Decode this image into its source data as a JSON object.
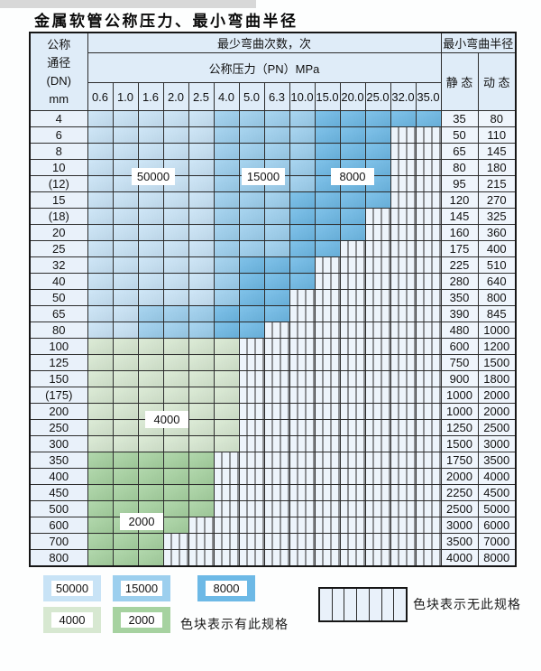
{
  "page": {
    "title": "金属软管公称压力、最小弯曲半径"
  },
  "table": {
    "header": {
      "dn_lines": [
        "公称",
        "通径",
        "(DN)",
        "mm"
      ],
      "bend_cycles_label": "最少弯曲次数，次",
      "pressure_label": "公称压力（PN）MPa",
      "pressure_values": [
        "0.6",
        "1.0",
        "1.6",
        "2.0",
        "2.5",
        "4.0",
        "5.0",
        "6.3",
        "10.0",
        "15.0",
        "20.0",
        "25.0",
        "32.0",
        "35.0"
      ],
      "min_radius_label": "最小弯曲半径",
      "static_label": "静 态",
      "dynamic_label": "动 态"
    },
    "zone_colors": {
      "b1": "#c8e3f6",
      "b2": "#9ccfee",
      "b3": "#6db9e6",
      "g1": "#d7e8d1",
      "g2": "#a6d2a0",
      "nospec_bg": "#edf4fb",
      "nospec_line": "#2d2d2d"
    },
    "zone_meaning": {
      "b1": "50000",
      "b2": "15000",
      "b3": "8000",
      "g1": "4000",
      "g2": "2000",
      "nospec": "无此规格"
    },
    "rows": [
      {
        "dn": "4",
        "zones": {
          "b1": 5,
          "b2": 4,
          "b3": 5
        },
        "static": "35",
        "dynamic": "80"
      },
      {
        "dn": "6",
        "zones": {
          "b1": 5,
          "b2": 4,
          "b3": 3
        },
        "static": "50",
        "dynamic": "110"
      },
      {
        "dn": "8",
        "zones": {
          "b1": 5,
          "b2": 4,
          "b3": 3
        },
        "static": "65",
        "dynamic": "145"
      },
      {
        "dn": "10",
        "zones": {
          "b1": 5,
          "b2": 4,
          "b3": 3
        },
        "static": "80",
        "dynamic": "180"
      },
      {
        "dn": "(12)",
        "zones": {
          "b1": 5,
          "b2": 4,
          "b3": 3
        },
        "static": "95",
        "dynamic": "215"
      },
      {
        "dn": "15",
        "zones": {
          "b1": 5,
          "b2": 3,
          "b3": 4
        },
        "static": "120",
        "dynamic": "270"
      },
      {
        "dn": "(18)",
        "zones": {
          "b1": 5,
          "b2": 3,
          "b3": 3
        },
        "static": "145",
        "dynamic": "325"
      },
      {
        "dn": "20",
        "zones": {
          "b1": 5,
          "b2": 3,
          "b3": 3
        },
        "static": "160",
        "dynamic": "360"
      },
      {
        "dn": "25",
        "zones": {
          "b1": 5,
          "b2": 3,
          "b3": 2
        },
        "static": "175",
        "dynamic": "400"
      },
      {
        "dn": "32",
        "zones": {
          "b1": 5,
          "b2": 1,
          "b3": 3
        },
        "static": "225",
        "dynamic": "510"
      },
      {
        "dn": "40",
        "zones": {
          "b1": 5,
          "b2": 1,
          "b3": 3
        },
        "static": "280",
        "dynamic": "640"
      },
      {
        "dn": "50",
        "zones": {
          "b1": 5,
          "b2": 1,
          "b3": 2
        },
        "static": "350",
        "dynamic": "800"
      },
      {
        "dn": "65",
        "zones": {
          "b1": 2,
          "b2": 3,
          "b3": 3
        },
        "static": "390",
        "dynamic": "845"
      },
      {
        "dn": "80",
        "zones": {
          "b1": 2,
          "b2": 3,
          "b3": 2
        },
        "static": "480",
        "dynamic": "1000"
      },
      {
        "dn": "100",
        "zones": {
          "g1": 6
        },
        "static": "600",
        "dynamic": "1200"
      },
      {
        "dn": "125",
        "zones": {
          "g1": 6
        },
        "static": "750",
        "dynamic": "1500"
      },
      {
        "dn": "150",
        "zones": {
          "g1": 6
        },
        "static": "900",
        "dynamic": "1800"
      },
      {
        "dn": "(175)",
        "zones": {
          "g1": 6
        },
        "static": "1000",
        "dynamic": "2000"
      },
      {
        "dn": "200",
        "zones": {
          "g1": 6
        },
        "static": "1000",
        "dynamic": "2000"
      },
      {
        "dn": "250",
        "zones": {
          "g1": 6
        },
        "static": "1250",
        "dynamic": "2500"
      },
      {
        "dn": "300",
        "zones": {
          "g1": 6
        },
        "static": "1500",
        "dynamic": "3000"
      },
      {
        "dn": "350",
        "zones": {
          "g2": 5
        },
        "static": "1750",
        "dynamic": "3500"
      },
      {
        "dn": "400",
        "zones": {
          "g2": 5
        },
        "static": "2000",
        "dynamic": "4000"
      },
      {
        "dn": "450",
        "zones": {
          "g2": 5
        },
        "static": "2250",
        "dynamic": "4500"
      },
      {
        "dn": "500",
        "zones": {
          "g2": 5
        },
        "static": "2500",
        "dynamic": "5000"
      },
      {
        "dn": "600",
        "zones": {
          "g2": 4
        },
        "static": "3000",
        "dynamic": "6000"
      },
      {
        "dn": "700",
        "zones": {
          "g2": 3
        },
        "static": "3500",
        "dynamic": "7000"
      },
      {
        "dn": "800",
        "zones": {
          "g2": 3
        },
        "static": "4000",
        "dynamic": "8000"
      }
    ],
    "overlay_labels": [
      {
        "text": "50000"
      },
      {
        "text": "15000"
      },
      {
        "text": "8000"
      },
      {
        "text": "4000"
      },
      {
        "text": "2000"
      }
    ]
  },
  "legend": {
    "items": [
      {
        "label": "50000",
        "zone": "b1"
      },
      {
        "label": "15000",
        "zone": "b2"
      },
      {
        "label": "8000",
        "zone": "b3"
      },
      {
        "label": "4000",
        "zone": "g1"
      },
      {
        "label": "2000",
        "zone": "g2"
      }
    ],
    "has_spec_text": "色块表示有此规格",
    "no_spec_text": "色块表示无此规格",
    "no_spec_cells": 7
  }
}
